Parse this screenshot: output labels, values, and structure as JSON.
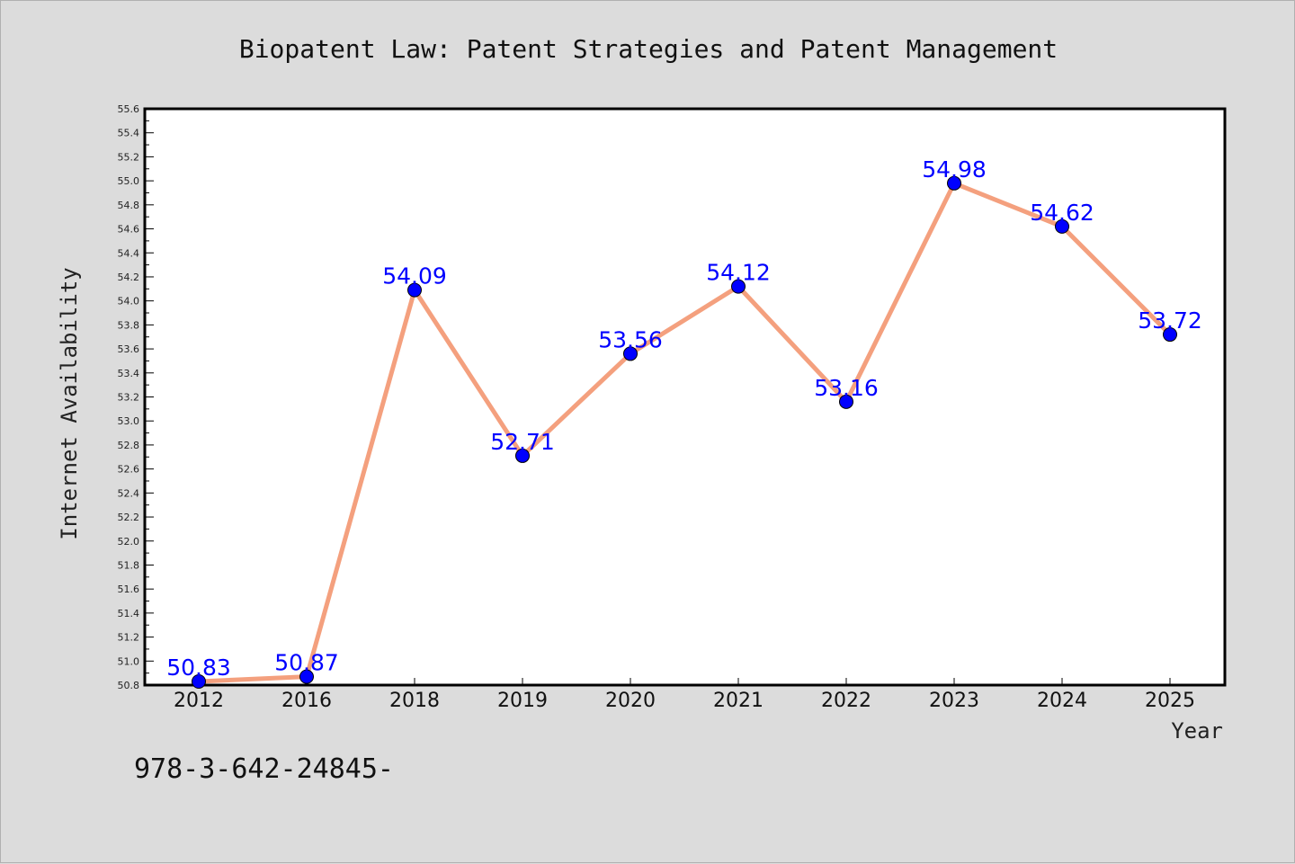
{
  "chart_data": {
    "type": "line",
    "title": "Biopatent Law: Patent Strategies and Patent Management",
    "xlabel": "Year",
    "ylabel": "Internet Availability",
    "categories": [
      "2012",
      "2016",
      "2018",
      "2019",
      "2020",
      "2021",
      "2022",
      "2023",
      "2024",
      "2025"
    ],
    "values": [
      50.83,
      50.87,
      54.09,
      52.71,
      53.56,
      54.12,
      53.16,
      54.98,
      54.62,
      53.72
    ],
    "data_labels": [
      "50.83",
      "50.87",
      "54.09",
      "52.71",
      "53.56",
      "54.12",
      "53.16",
      "54.98",
      "54.62",
      "53.72"
    ],
    "ylim": [
      50.8,
      55.6
    ],
    "y_ticks": [
      "50.8",
      "51.0",
      "51.2",
      "51.4",
      "51.6",
      "51.8",
      "52.0",
      "52.2",
      "52.4",
      "52.6",
      "52.8",
      "53.0",
      "53.2",
      "53.4",
      "53.6",
      "53.8",
      "54.0",
      "54.2",
      "54.4",
      "54.6",
      "54.8",
      "55.0",
      "55.2",
      "55.4",
      "55.6"
    ],
    "grid": false,
    "line_color": "#f4a07e",
    "marker_color": "#0000ff",
    "label_color": "#0000ff"
  },
  "footnote": "978-3-642-24845-"
}
